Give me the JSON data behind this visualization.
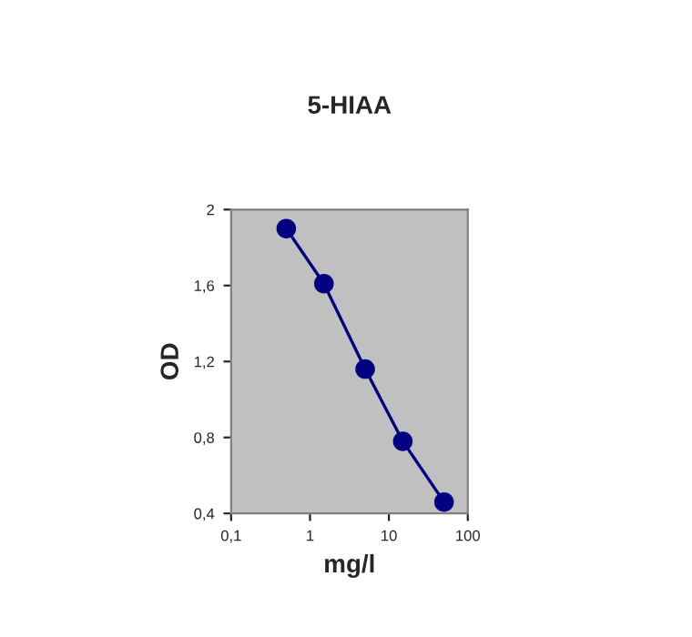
{
  "chart_data": {
    "type": "line",
    "title": "5-HIAA",
    "xlabel": "mg/l",
    "ylabel": "OD",
    "x": [
      0.5,
      1.5,
      5,
      15,
      50
    ],
    "series": [
      {
        "color": "#000080",
        "values": [
          1.9,
          1.61,
          1.16,
          0.78,
          0.46
        ]
      }
    ],
    "log": "x",
    "xlim": [
      0.1,
      100
    ],
    "xticks": [
      {
        "value": 0.1,
        "label": "0,1"
      },
      1,
      10,
      100
    ],
    "ylim": [
      0.4,
      2
    ],
    "yticks": [
      {
        "value": 0.4,
        "label": "0,4"
      },
      {
        "value": 0.8,
        "label": "0,8"
      },
      {
        "value": 1.2,
        "label": "1,2"
      },
      {
        "value": 1.6,
        "label": "1,6"
      },
      2
    ],
    "grid": false,
    "marker": "circle",
    "line_style": "solid",
    "legend": false
  }
}
